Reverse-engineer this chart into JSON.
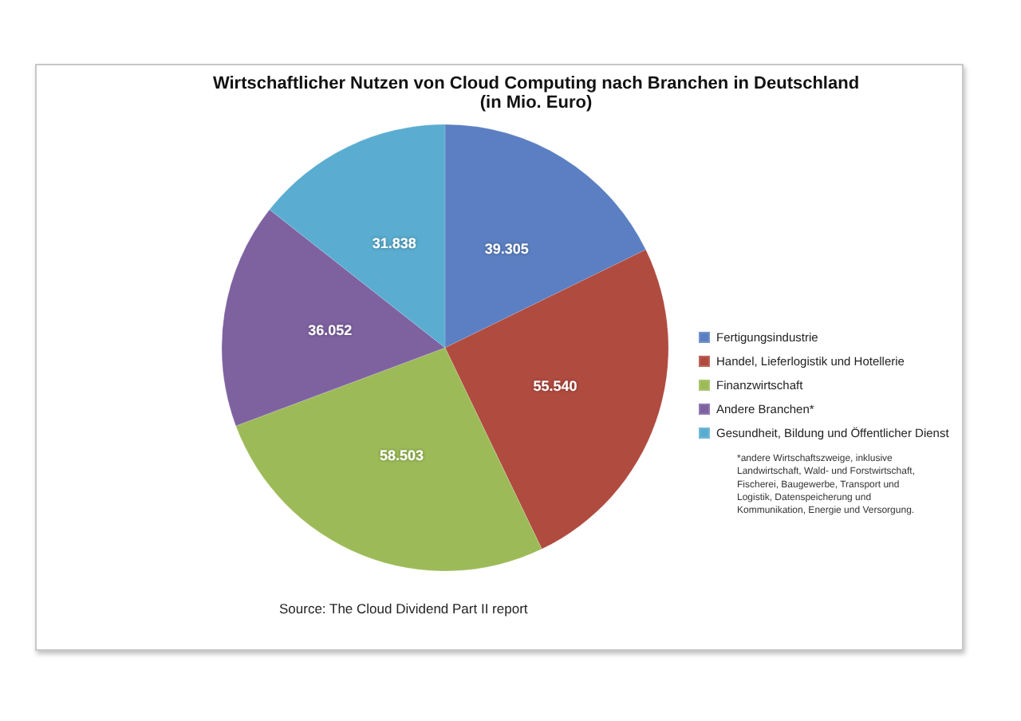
{
  "chart_data": {
    "type": "pie",
    "title": "Wirtschaftlicher Nutzen von Cloud Computing nach Branchen in Deutschland",
    "subtitle": "(in Mio. Euro)",
    "categories": [
      "Fertigungsindustrie",
      "Handel, Lieferlogistik und Hotellerie",
      "Finanzwirtschaft",
      "Andere Branchen*",
      "Gesundheit, Bildung und Öffentlicher Dienst"
    ],
    "values": [
      39305,
      55540,
      58503,
      36052,
      31838
    ],
    "value_labels": [
      "39.305",
      "55.540",
      "58.503",
      "36.052",
      "31.838"
    ],
    "colors": [
      "#5b7fc2",
      "#b04b40",
      "#9cbb58",
      "#7e62a0",
      "#5aadd0"
    ],
    "legend": "right",
    "annotations": [
      "*andere Wirtschaftszweige, inklusive\nLandwirtschaft, Wald- und Forstwirtschaft,\nFischerei, Baugewerbe, Transport und\nLogistik, Datenspeicherung und\nKommunikation, Energie und Versorgung.",
      "Source: The Cloud Dividend Part II report"
    ]
  }
}
